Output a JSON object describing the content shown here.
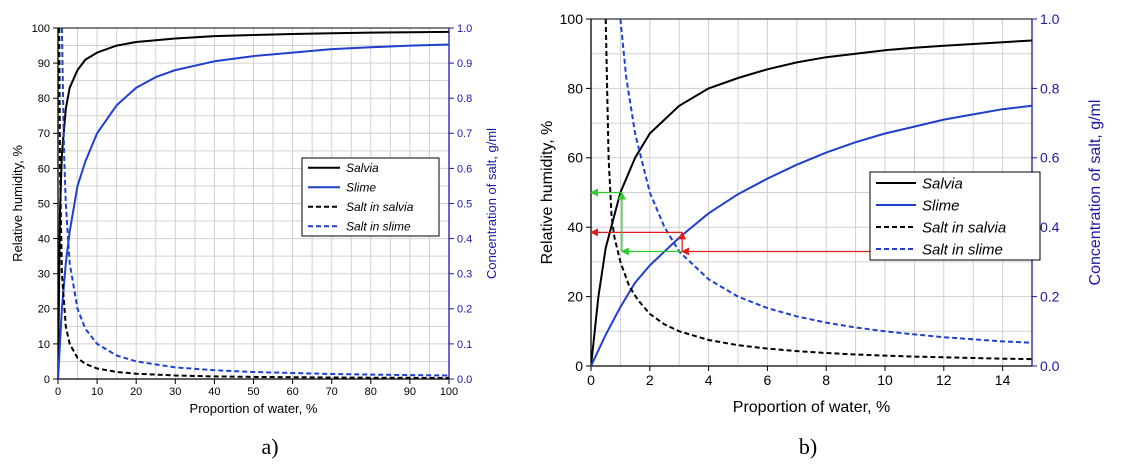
{
  "chart_data": [
    {
      "panel_label": "a)",
      "type": "line",
      "xlabel": "Proportion of water, %",
      "ylabel": "Relative humidity, %",
      "y2label": "Concentration of salt, g/ml",
      "xlim": [
        0,
        100
      ],
      "ylim": [
        0,
        100
      ],
      "y2lim": [
        0,
        1.0
      ],
      "xticks": [
        0,
        10,
        20,
        30,
        40,
        50,
        60,
        70,
        80,
        90,
        100
      ],
      "yticks": [
        0,
        10,
        20,
        30,
        40,
        50,
        60,
        70,
        80,
        90,
        100
      ],
      "y2ticks": [
        "0.0",
        "0.1",
        "0.2",
        "0.3",
        "0.4",
        "0.5",
        "0.6",
        "0.7",
        "0.8",
        "0.9",
        "1.0"
      ],
      "grid": true,
      "legend_position": "middle-right",
      "series": [
        {
          "name": "Salvia",
          "axis": "left",
          "style": "solid",
          "color": "#000000",
          "x": [
            0,
            0.5,
            1,
            2,
            3,
            5,
            7,
            10,
            15,
            20,
            30,
            40,
            50,
            60,
            70,
            80,
            90,
            100
          ],
          "y": [
            0,
            48,
            64,
            77,
            83,
            88,
            91,
            93,
            95,
            96,
            97,
            97.7,
            98,
            98.3,
            98.5,
            98.7,
            98.8,
            98.9
          ]
        },
        {
          "name": "Slime",
          "axis": "left",
          "style": "solid",
          "color": "#1f3fcc",
          "x": [
            0,
            1,
            2,
            3,
            5,
            7,
            10,
            15,
            20,
            25,
            30,
            40,
            50,
            60,
            70,
            80,
            90,
            100
          ],
          "y": [
            0,
            20,
            33,
            42,
            55,
            62,
            70,
            78,
            83,
            86,
            88,
            90.5,
            92,
            93,
            94,
            94.5,
            95,
            95.3
          ]
        },
        {
          "name": "Salt in salvia",
          "axis": "right",
          "style": "dashed",
          "color": "#000000",
          "x": [
            0.3,
            0.5,
            1,
            2,
            3,
            5,
            7,
            10,
            15,
            20,
            30,
            40,
            50,
            60,
            70,
            80,
            90,
            100
          ],
          "y": [
            1.0,
            0.6,
            0.3,
            0.15,
            0.1,
            0.06,
            0.043,
            0.03,
            0.02,
            0.015,
            0.01,
            0.0075,
            0.006,
            0.005,
            0.0043,
            0.0038,
            0.0033,
            0.003
          ]
        },
        {
          "name": "Salt in slime",
          "axis": "right",
          "style": "dashed",
          "color": "#1f3fcc",
          "x": [
            1,
            1.5,
            2,
            3,
            5,
            7,
            10,
            15,
            20,
            30,
            40,
            50,
            60,
            70,
            80,
            90,
            100
          ],
          "y": [
            1.0,
            0.66,
            0.5,
            0.33,
            0.2,
            0.143,
            0.1,
            0.067,
            0.05,
            0.033,
            0.025,
            0.02,
            0.017,
            0.0143,
            0.0125,
            0.011,
            0.01
          ]
        }
      ]
    },
    {
      "panel_label": "b)",
      "type": "line",
      "xlabel": "Proportion of water, %",
      "ylabel": "Relative humidity, %",
      "y2label": "Concentration of salt, g/ml",
      "xlim": [
        0,
        15
      ],
      "ylim": [
        0,
        100
      ],
      "y2lim": [
        0,
        1.0
      ],
      "xticks": [
        0,
        2,
        4,
        6,
        8,
        10,
        12,
        14
      ],
      "yticks": [
        0,
        20,
        40,
        60,
        80,
        100
      ],
      "y2ticks": [
        "0.0",
        "0.2",
        "0.4",
        "0.6",
        "0.8",
        "1.0"
      ],
      "grid": true,
      "legend_position": "middle-right",
      "series": [
        {
          "name": "Salvia",
          "axis": "left",
          "style": "solid",
          "color": "#000000",
          "x": [
            0,
            0.25,
            0.5,
            1,
            1.5,
            2,
            2.5,
            3,
            4,
            5,
            6,
            7,
            8,
            9,
            10,
            11,
            12,
            13,
            14,
            15
          ],
          "y": [
            0,
            20,
            34,
            50,
            60,
            67,
            71,
            75,
            80,
            83,
            85.5,
            87.5,
            89,
            90,
            91,
            91.7,
            92.3,
            92.8,
            93.3,
            93.8
          ]
        },
        {
          "name": "Slime",
          "axis": "left",
          "style": "solid",
          "color": "#1f3fcc",
          "x": [
            0,
            0.5,
            1,
            1.5,
            2,
            3,
            4,
            5,
            6,
            7,
            8,
            9,
            10,
            11,
            12,
            13,
            14,
            15
          ],
          "y": [
            0,
            9,
            17,
            24,
            29,
            37,
            44,
            49.5,
            54,
            58,
            61.5,
            64.5,
            67,
            69,
            71,
            72.5,
            74,
            75
          ]
        },
        {
          "name": "Salt in salvia",
          "axis": "right",
          "style": "dashed",
          "color": "#000000",
          "x": [
            0.5,
            0.6,
            0.7,
            0.8,
            1,
            1.3,
            1.6,
            2,
            2.5,
            3,
            4,
            5,
            6,
            7,
            8,
            9,
            10,
            11,
            12,
            13,
            14,
            15
          ],
          "y": [
            1.0,
            0.6,
            0.43,
            0.37,
            0.3,
            0.23,
            0.19,
            0.15,
            0.12,
            0.1,
            0.075,
            0.06,
            0.05,
            0.043,
            0.0375,
            0.033,
            0.03,
            0.027,
            0.025,
            0.023,
            0.021,
            0.02
          ]
        },
        {
          "name": "Salt in slime",
          "axis": "right",
          "style": "dashed",
          "color": "#1f3fcc",
          "x": [
            1.0,
            1.2,
            1.5,
            2,
            2.5,
            3,
            4,
            5,
            6,
            7,
            8,
            9,
            10,
            11,
            12,
            13,
            14,
            15
          ],
          "y": [
            1.0,
            0.83,
            0.67,
            0.5,
            0.4,
            0.33,
            0.25,
            0.2,
            0.167,
            0.143,
            0.125,
            0.111,
            0.1,
            0.091,
            0.083,
            0.077,
            0.071,
            0.067
          ]
        }
      ],
      "annotations": [
        {
          "kind": "arrow",
          "color": "#e21b1b",
          "x1": 15,
          "y1": 33,
          "x2": 3.1,
          "y2": 33
        },
        {
          "kind": "arrow",
          "color": "#e21b1b",
          "x1": 3.1,
          "y1": 33,
          "x2": 3.1,
          "y2": 38.5
        },
        {
          "kind": "arrow",
          "color": "#e21b1b",
          "x1": 3.1,
          "y1": 38.5,
          "x2": 0,
          "y2": 38.5
        },
        {
          "kind": "arrow",
          "color": "#2ecc2e",
          "x1": 3.1,
          "y1": 33,
          "x2": 1.05,
          "y2": 33
        },
        {
          "kind": "arrow",
          "color": "#2ecc2e",
          "x1": 1.05,
          "y1": 33,
          "x2": 1.05,
          "y2": 50
        },
        {
          "kind": "arrow",
          "color": "#2ecc2e",
          "x1": 1.05,
          "y1": 50,
          "x2": 0,
          "y2": 50
        }
      ]
    }
  ]
}
